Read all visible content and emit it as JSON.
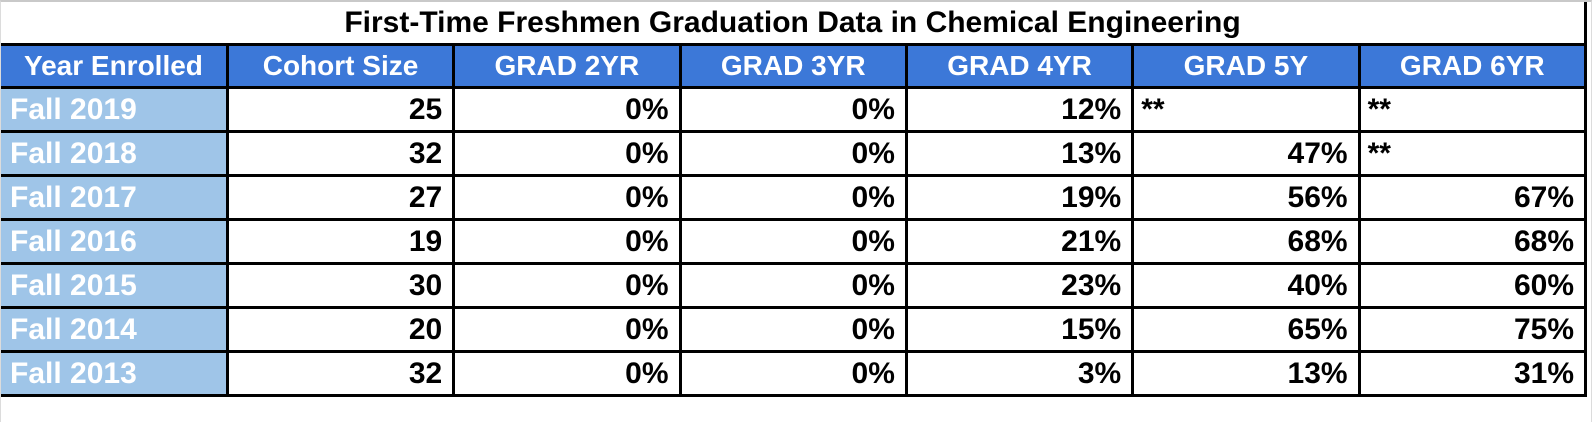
{
  "title": "First-Time Freshmen Graduation Data in Chemical Engineering",
  "chart_data": {
    "type": "table",
    "title": "First-Time Freshmen Graduation Data in Chemical Engineering",
    "columns": [
      "Year Enrolled",
      "Cohort Size",
      "GRAD 2YR",
      "GRAD 3YR",
      "GRAD 4YR",
      "GRAD 5Y",
      "GRAD 6YR"
    ],
    "rows": [
      [
        "Fall 2019",
        "25",
        "0%",
        "0%",
        "12%",
        "**",
        "**"
      ],
      [
        "Fall 2018",
        "32",
        "0%",
        "0%",
        "13%",
        "47%",
        "**"
      ],
      [
        "Fall 2017",
        "27",
        "0%",
        "0%",
        "19%",
        "56%",
        "67%"
      ],
      [
        "Fall 2016",
        "19",
        "0%",
        "0%",
        "21%",
        "68%",
        "68%"
      ],
      [
        "Fall 2015",
        "30",
        "0%",
        "0%",
        "23%",
        "40%",
        "60%"
      ],
      [
        "Fall 2014",
        "20",
        "0%",
        "0%",
        "15%",
        "65%",
        "75%"
      ],
      [
        "Fall 2013",
        "32",
        "0%",
        "0%",
        "3%",
        "13%",
        "31%"
      ]
    ]
  },
  "colors": {
    "header_bg": "#3c78d8",
    "year_column_bg": "#9fc5e8",
    "header_text": "#ffffff",
    "cell_text": "#000000",
    "grid_border": "#000000",
    "screenshot_edge": "#c9c9c9"
  }
}
